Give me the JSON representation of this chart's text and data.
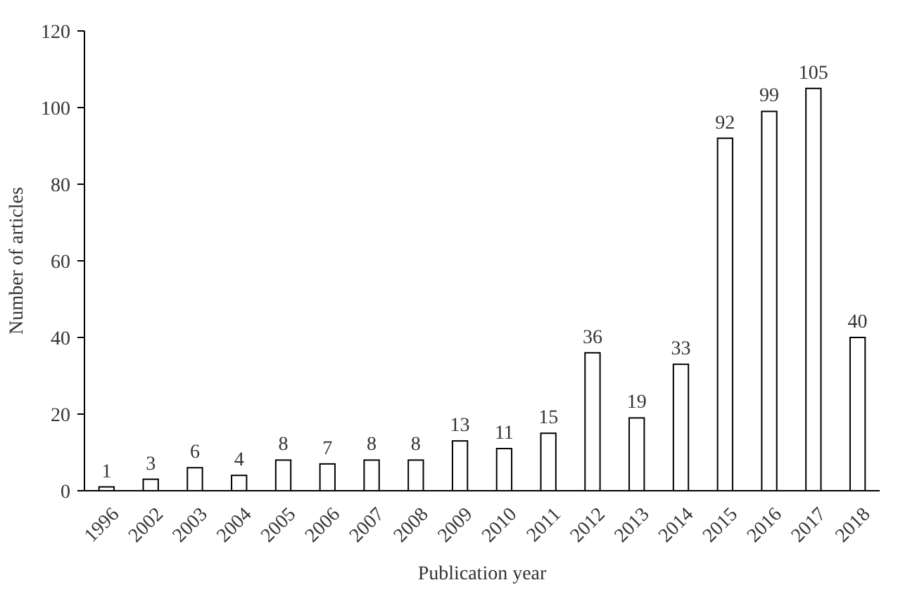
{
  "chart_data": {
    "type": "bar",
    "xlabel": "Publication year",
    "ylabel": "Number of articles",
    "categories": [
      "1996",
      "2002",
      "2003",
      "2004",
      "2005",
      "2006",
      "2007",
      "2008",
      "2009",
      "2010",
      "2011",
      "2012",
      "2013",
      "2014",
      "2015",
      "2016",
      "2017",
      "2018"
    ],
    "values": [
      1,
      3,
      6,
      4,
      8,
      7,
      8,
      8,
      13,
      11,
      15,
      36,
      19,
      33,
      92,
      99,
      105,
      40
    ],
    "color": "#ffffff",
    "ylim": [
      0,
      120
    ],
    "yticks": [
      0,
      20,
      40,
      60,
      80,
      100,
      120
    ],
    "data_labels": true,
    "grid": false
  }
}
